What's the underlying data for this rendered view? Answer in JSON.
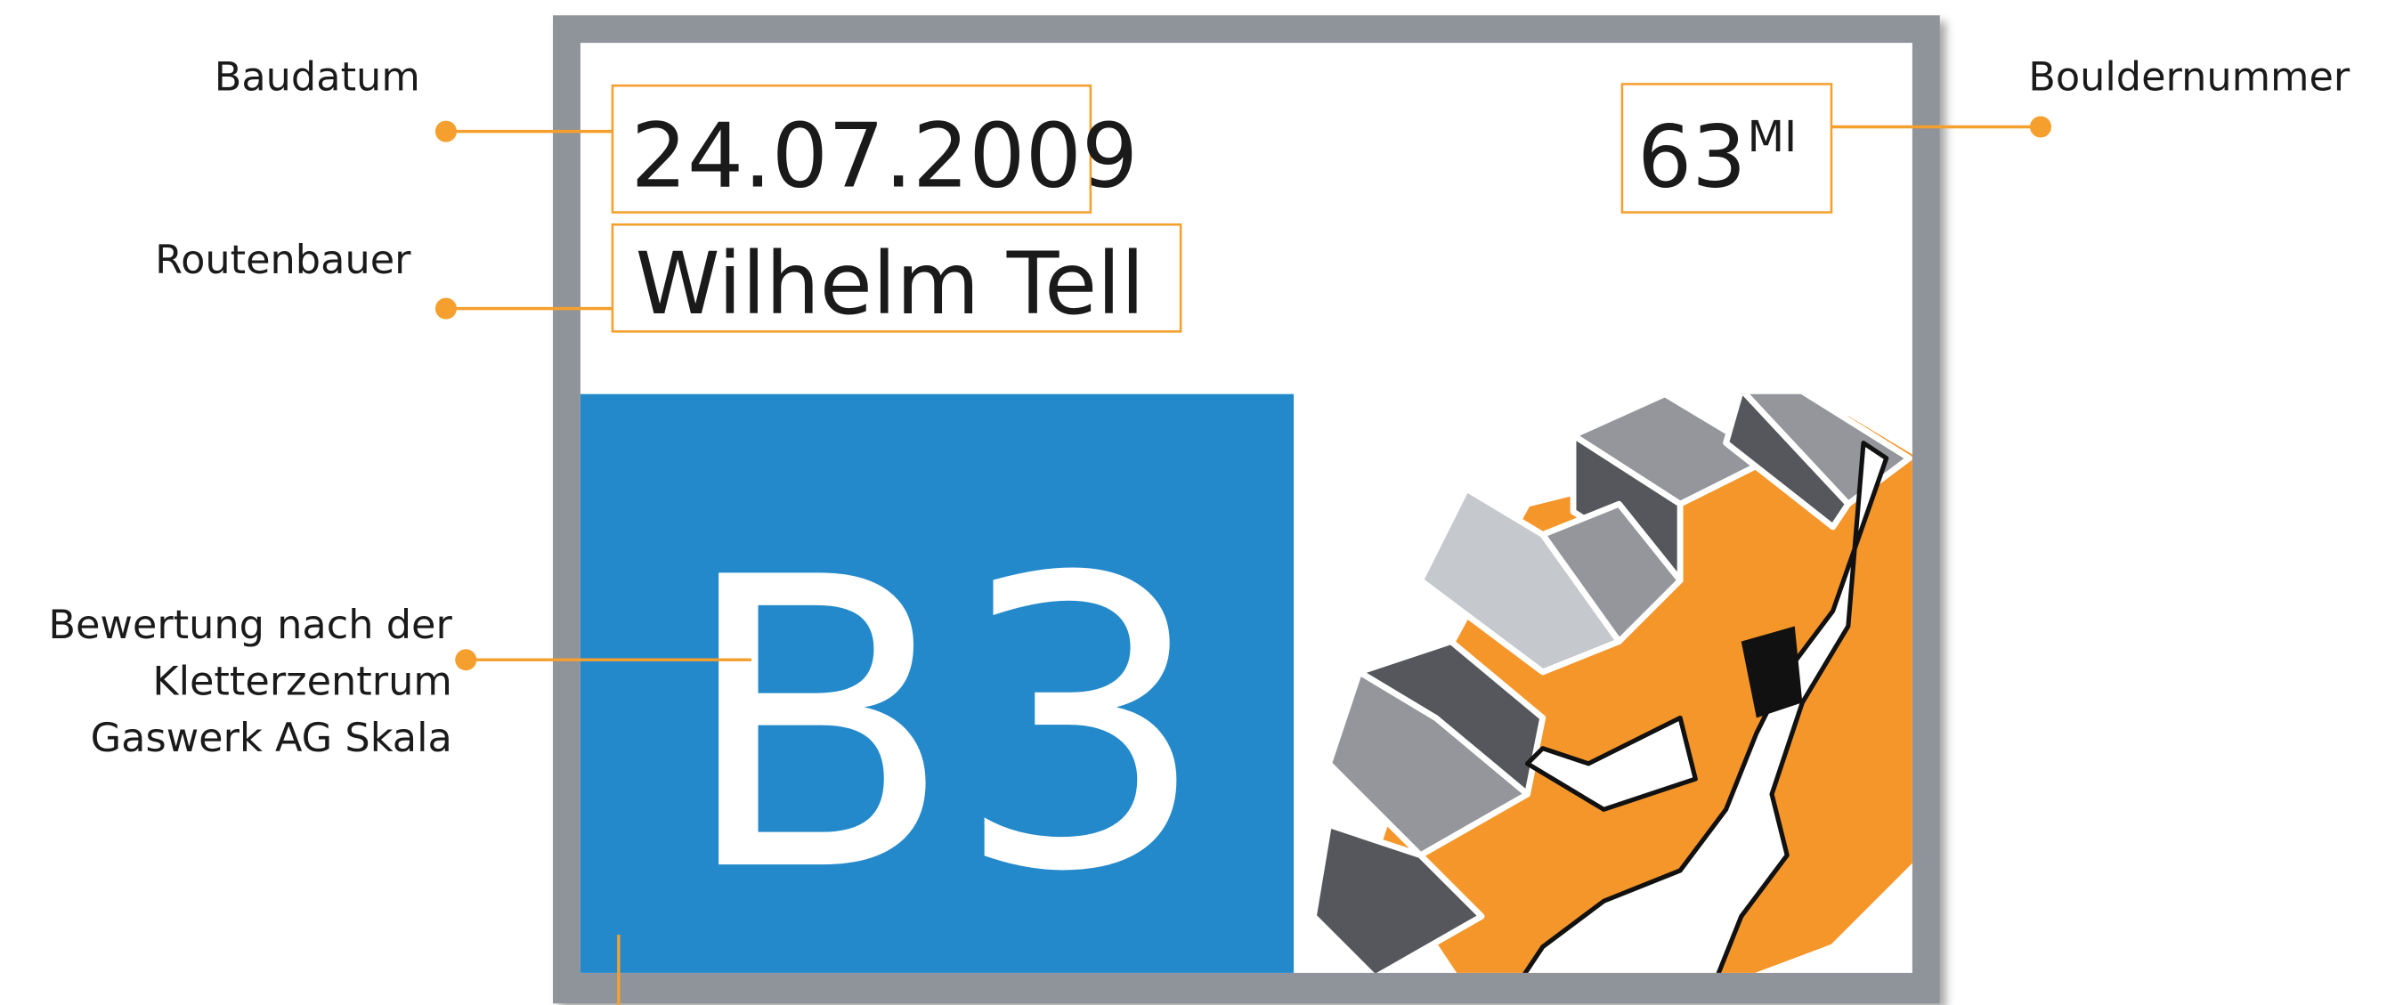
{
  "callouts": {
    "build_date": "Baudatum",
    "setter": "Routenbauer",
    "grade": [
      "Bewertung nach der",
      "Kletterzentrum",
      "Gaswerk AG Skala"
    ],
    "number": "Bouldernummer"
  },
  "sign": {
    "date": "24.07.2009",
    "setter": "Wilhelm Tell",
    "number": "63",
    "sector": "MI",
    "grade": "B3"
  }
}
